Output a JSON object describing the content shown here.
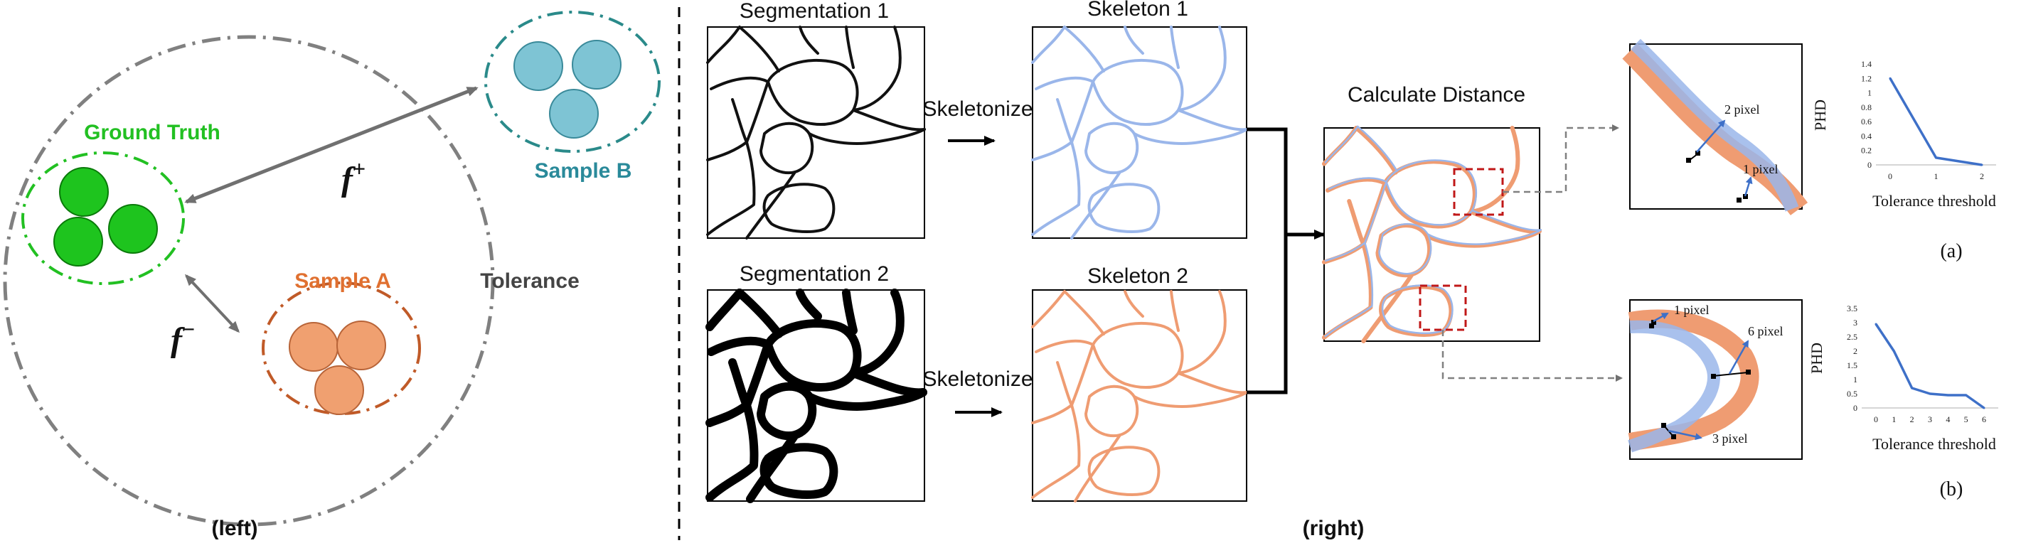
{
  "left": {
    "ground_truth_label": "Ground Truth",
    "sample_a_label": "Sample A",
    "sample_b_label": "Sample B",
    "tolerance_label": "Tolerance",
    "f_plus": "f",
    "f_plus_sup": "+",
    "f_minus": "f",
    "f_minus_sup": "−",
    "caption": "(left)"
  },
  "right": {
    "segmentation_1": "Segmentation 1",
    "segmentation_2": "Segmentation 2",
    "skeletonize_1": "Skeletonize",
    "skeletonize_2": "Skeletonize",
    "skeleton_1": "Skeleton 1",
    "skeleton_2": "Skeleton 2",
    "calculate_distance": "Calculate Distance",
    "zoom_a": {
      "label_top": "2 pixel",
      "label_bottom": "1 pixel"
    },
    "zoom_b": {
      "label_top_left": "1 pixel",
      "label_right": "6 pixel",
      "label_bottom": "3 pixel"
    },
    "panel_a": "(a)",
    "panel_b": "(b)",
    "caption": "(right)"
  },
  "colors": {
    "ground_truth": "#22c022",
    "sample_a": "#f0a070",
    "sample_b": "#7ec4d4",
    "skeleton_blue": "#9ab6ea",
    "skeleton_orange": "#ef9c72",
    "line_blue": "#3e70c8",
    "box_red": "#c01818"
  },
  "chart_data": [
    {
      "type": "line",
      "panel": "(a)",
      "xlabel": "Tolerance threshold",
      "ylabel": "PHD",
      "x_ticks": [
        "0",
        "1",
        "2"
      ],
      "y_ticks": [
        "0",
        "0.2",
        "0.4",
        "0.6",
        "0.8",
        "1",
        "1.2",
        "1.4"
      ],
      "ylim": [
        0,
        1.4
      ],
      "x": [
        0,
        1,
        2
      ],
      "y": [
        1.2,
        0.1,
        0.0
      ]
    },
    {
      "type": "line",
      "panel": "(b)",
      "xlabel": "Tolerance threshold",
      "ylabel": "PHD",
      "x_ticks": [
        "0",
        "1",
        "2",
        "3",
        "4",
        "5",
        "6"
      ],
      "y_ticks": [
        "0",
        "0.5",
        "1",
        "1.5",
        "2",
        "2.5",
        "3",
        "3.5"
      ],
      "ylim": [
        0,
        3.5
      ],
      "x": [
        0,
        1,
        2,
        3,
        4,
        5,
        6
      ],
      "y": [
        2.95,
        2.0,
        0.7,
        0.5,
        0.45,
        0.45,
        0.0
      ]
    }
  ]
}
